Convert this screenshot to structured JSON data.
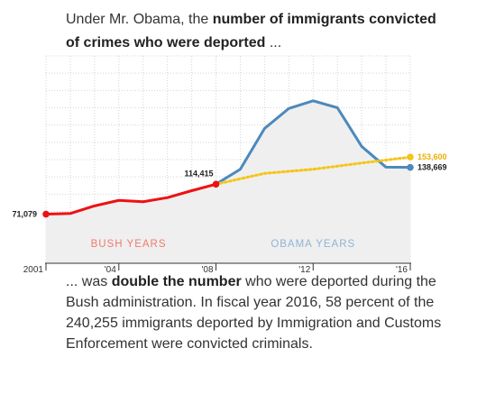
{
  "intro": {
    "part1": "Under Mr. Obama, the ",
    "bold": "number of immigrants convicted of crimes who were deported",
    "part2": " ..."
  },
  "outro": {
    "part1": "... was ",
    "bold": "double the number",
    "part2": " who were deported during the Bush administration. In fiscal year 2016, 58 percent of the 240,255 immigrants deported by Immigration and Customs Enforcement were convicted criminals."
  },
  "colors": {
    "bush": "#ee1111",
    "bush_label": "#f07a6e",
    "obama": "#4c89bd",
    "obama_label": "#8fb4d6",
    "total": "#f5c518",
    "total_label": "#e8b000",
    "area_fill": "#efefef",
    "grid": "#d4d4d4",
    "axis": "#333333"
  },
  "chart_data": {
    "type": "line",
    "title": "",
    "xlabel": "",
    "ylabel": "",
    "xlim": [
      2001,
      2016
    ],
    "ylim": [
      0,
      300000
    ],
    "grid": true,
    "x_ticks": [
      {
        "value": 2001,
        "label": "2001"
      },
      {
        "value": 2004,
        "label": "'04"
      },
      {
        "value": 2008,
        "label": "'08"
      },
      {
        "value": 2012,
        "label": "'12"
      },
      {
        "value": 2016,
        "label": "'16"
      }
    ],
    "series": [
      {
        "key": "bush",
        "x": [
          2001,
          2002,
          2003,
          2004,
          2005,
          2006,
          2007,
          2008
        ],
        "y": [
          71079,
          72000,
          83000,
          91000,
          89000,
          95000,
          105000,
          114415
        ]
      },
      {
        "key": "obama",
        "x": [
          2008,
          2009,
          2010,
          2011,
          2012,
          2013,
          2014,
          2015,
          2016
        ],
        "y": [
          114415,
          136000,
          195000,
          224000,
          235000,
          225000,
          169000,
          139000,
          138669
        ]
      },
      {
        "key": "doubled",
        "style": "dotted",
        "x": [
          2008,
          2010,
          2012,
          2014,
          2016
        ],
        "y": [
          114415,
          130000,
          136000,
          145000,
          153600
        ]
      }
    ],
    "annotations": [
      {
        "series": "bush",
        "x": 2001,
        "y": 71079,
        "label": "71,079"
      },
      {
        "series": "bush",
        "x": 2008,
        "y": 114415,
        "label": "114,415"
      },
      {
        "series": "doubled",
        "x": 2016,
        "y": 153600,
        "label": "153,600"
      },
      {
        "series": "obama",
        "x": 2016,
        "y": 138669,
        "label": "138,669"
      }
    ],
    "era_labels": [
      {
        "text": "BUSH YEARS",
        "x": 2004.4,
        "series": "bush"
      },
      {
        "text": "OBAMA YEARS",
        "x": 2012.0,
        "series": "obama"
      }
    ]
  }
}
